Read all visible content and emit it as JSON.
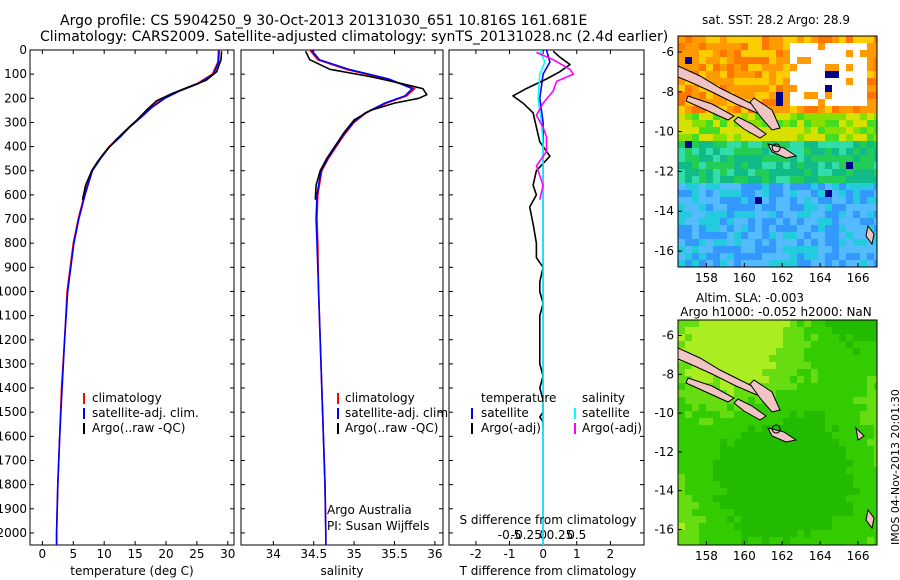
{
  "header": {
    "title_line1": "Argo profile: CS 5904250_9 30-Oct-2013 20131030_651 10.816S 161.681E",
    "title_line2": "Climatology: CARS2009. Satellite-adjusted climatology: synTS_20131028.nc (2.4d earlier)"
  },
  "footer": {
    "stamp": "IMOS 04-Nov-2013 20:01:30"
  },
  "colors": {
    "climatology": "#ff0000",
    "satellite": "#0000ff",
    "argo": "#000000",
    "s_satellite": "#00ffff",
    "s_argo": "#ff00ff"
  },
  "chart_data": [
    {
      "id": "temperature",
      "type": "line",
      "xlabel": "temperature (deg C)",
      "ylabel": "",
      "xlim": [
        -2,
        31
      ],
      "ylim": [
        2050,
        0
      ],
      "xticks": [
        0,
        5,
        10,
        15,
        20,
        25,
        30
      ],
      "yticks": [
        0,
        100,
        200,
        300,
        400,
        500,
        600,
        700,
        800,
        900,
        1000,
        1100,
        1200,
        1300,
        1400,
        1500,
        1600,
        1700,
        1800,
        1900,
        2000
      ],
      "legend": [
        "climatology",
        "satellite-adj. clim.",
        "Argo(..raw -QC)"
      ],
      "series": [
        {
          "name": "climatology",
          "color": "#ff0000",
          "points": [
            [
              28.5,
              0
            ],
            [
              28.4,
              50
            ],
            [
              27.5,
              100
            ],
            [
              25,
              140
            ],
            [
              22,
              170
            ],
            [
              19.5,
              200
            ],
            [
              17.5,
              240
            ],
            [
              15.8,
              280
            ],
            [
              14,
              320
            ],
            [
              12.5,
              360
            ],
            [
              10.8,
              400
            ],
            [
              9.3,
              450
            ],
            [
              8,
              500
            ],
            [
              6.8,
              600
            ],
            [
              5.8,
              700
            ],
            [
              5,
              800
            ],
            [
              4.5,
              900
            ],
            [
              4,
              1000
            ],
            [
              3.6,
              1200
            ],
            [
              3.1,
              1400
            ],
            [
              2.8,
              1600
            ],
            [
              2.5,
              1800
            ],
            [
              2.3,
              2000
            ],
            [
              2.3,
              2050
            ]
          ]
        },
        {
          "name": "satellite-adj. clim.",
          "color": "#0000ff",
          "points": [
            [
              28.6,
              0
            ],
            [
              28.5,
              50
            ],
            [
              27.7,
              100
            ],
            [
              25.2,
              140
            ],
            [
              22.2,
              170
            ],
            [
              19.8,
              200
            ],
            [
              17.6,
              240
            ],
            [
              15.9,
              280
            ],
            [
              14.1,
              320
            ],
            [
              12.6,
              360
            ],
            [
              10.9,
              400
            ],
            [
              9.4,
              450
            ],
            [
              8.1,
              500
            ],
            [
              6.9,
              600
            ],
            [
              5.9,
              700
            ],
            [
              5.1,
              800
            ],
            [
              4.6,
              900
            ],
            [
              4.1,
              1000
            ],
            [
              3.6,
              1200
            ],
            [
              3.2,
              1400
            ],
            [
              2.8,
              1600
            ],
            [
              2.5,
              1800
            ],
            [
              2.3,
              2000
            ],
            [
              2.3,
              2050
            ]
          ]
        },
        {
          "name": "Argo(..raw -QC)",
          "color": "#000000",
          "points": [
            [
              29,
              5
            ],
            [
              28.9,
              40
            ],
            [
              28.2,
              90
            ],
            [
              26.5,
              125
            ],
            [
              24,
              150
            ],
            [
              21,
              180
            ],
            [
              18.5,
              210
            ],
            [
              16.8,
              250
            ],
            [
              15.3,
              290
            ],
            [
              13.6,
              330
            ],
            [
              12,
              370
            ],
            [
              10.2,
              420
            ],
            [
              9,
              460
            ],
            [
              8,
              500
            ],
            [
              7,
              560
            ],
            [
              6.5,
              620
            ]
          ]
        }
      ]
    },
    {
      "id": "salinity",
      "type": "line",
      "xlabel": "salinity",
      "ylabel": "",
      "xlim": [
        33.6,
        36.1
      ],
      "ylim": [
        2050,
        0
      ],
      "xticks": [
        34,
        34.5,
        35,
        35.5,
        36
      ],
      "xtick_labels": [
        "34",
        "34.5",
        "35",
        "35.5",
        "36"
      ],
      "legend": [
        "climatology",
        "satellite-adj. clim.",
        "Argo(..raw -QC)"
      ],
      "annotation": [
        "Argo Australia",
        "PI: Susan Wijffels"
      ],
      "series": [
        {
          "name": "climatology",
          "color": "#ff0000",
          "points": [
            [
              34.45,
              0
            ],
            [
              34.55,
              40
            ],
            [
              34.9,
              80
            ],
            [
              35.4,
              120
            ],
            [
              35.75,
              160
            ],
            [
              35.65,
              190
            ],
            [
              35.4,
              220
            ],
            [
              35.15,
              260
            ],
            [
              35,
              300
            ],
            [
              34.88,
              350
            ],
            [
              34.78,
              400
            ],
            [
              34.68,
              450
            ],
            [
              34.6,
              500
            ],
            [
              34.55,
              600
            ],
            [
              34.54,
              700
            ],
            [
              34.55,
              800
            ],
            [
              34.56,
              1000
            ],
            [
              34.58,
              1200
            ],
            [
              34.6,
              1400
            ],
            [
              34.62,
              1600
            ],
            [
              34.64,
              1800
            ],
            [
              34.65,
              2000
            ],
            [
              34.65,
              2050
            ]
          ]
        },
        {
          "name": "satellite-adj. clim.",
          "color": "#0000ff",
          "points": [
            [
              34.47,
              0
            ],
            [
              34.57,
              40
            ],
            [
              34.93,
              80
            ],
            [
              35.43,
              120
            ],
            [
              35.72,
              160
            ],
            [
              35.63,
              190
            ],
            [
              35.38,
              220
            ],
            [
              35.14,
              260
            ],
            [
              34.99,
              300
            ],
            [
              34.87,
              350
            ],
            [
              34.77,
              400
            ],
            [
              34.67,
              450
            ],
            [
              34.59,
              500
            ],
            [
              34.54,
              600
            ],
            [
              34.53,
              700
            ],
            [
              34.54,
              800
            ],
            [
              34.56,
              1000
            ],
            [
              34.58,
              1200
            ],
            [
              34.6,
              1400
            ],
            [
              34.62,
              1600
            ],
            [
              34.64,
              1800
            ],
            [
              34.65,
              2000
            ],
            [
              34.65,
              2050
            ]
          ]
        },
        {
          "name": "Argo(..raw -QC)",
          "color": "#000000",
          "points": [
            [
              34.4,
              5
            ],
            [
              34.45,
              40
            ],
            [
              34.7,
              80
            ],
            [
              35.2,
              110
            ],
            [
              35.6,
              140
            ],
            [
              35.85,
              160
            ],
            [
              35.9,
              185
            ],
            [
              35.8,
              200
            ],
            [
              35.5,
              220
            ],
            [
              35.2,
              250
            ],
            [
              35,
              290
            ],
            [
              34.88,
              340
            ],
            [
              34.76,
              400
            ],
            [
              34.66,
              450
            ],
            [
              34.58,
              500
            ],
            [
              34.53,
              560
            ],
            [
              34.52,
              620
            ]
          ]
        }
      ]
    },
    {
      "id": "difference",
      "type": "line",
      "xlabel": "T difference from climatology",
      "xlabel_top": "S difference from climatology",
      "xlim": [
        -2.8,
        3
      ],
      "ylim": [
        2050,
        0
      ],
      "xticks": [
        -2,
        -1,
        0,
        1,
        2
      ],
      "top_ticks": [
        -0.5,
        -0.25,
        0,
        0.25,
        0.5
      ],
      "top_tick_labels": [
        "-0.5",
        "-0.25",
        "0",
        "0.25",
        "0.5"
      ],
      "legend_left": [
        "temperature",
        "satellite",
        "Argo(-adj)"
      ],
      "legend_right": [
        "salinity",
        "satellite",
        "Argo(-adj)"
      ],
      "series": [
        {
          "name": "T satellite",
          "color": "#0000ff",
          "points": [
            [
              0.1,
              0
            ],
            [
              0.2,
              50
            ],
            [
              0,
              100
            ],
            [
              -0.1,
              200
            ],
            [
              0,
              300
            ],
            [
              0,
              400
            ],
            [
              0,
              500
            ],
            [
              0,
              700
            ],
            [
              0,
              900
            ],
            [
              0,
              1200
            ],
            [
              0,
              1500
            ],
            [
              0,
              1800
            ],
            [
              0,
              2050
            ]
          ]
        },
        {
          "name": "T Argo(-adj)",
          "color": "#000000",
          "points": [
            [
              0.3,
              5
            ],
            [
              0.5,
              30
            ],
            [
              0.8,
              60
            ],
            [
              0.5,
              90
            ],
            [
              0.1,
              120
            ],
            [
              -0.5,
              160
            ],
            [
              -0.9,
              190
            ],
            [
              -0.6,
              220
            ],
            [
              -0.3,
              260
            ],
            [
              -0.2,
              320
            ],
            [
              -0.1,
              380
            ],
            [
              0.2,
              440
            ],
            [
              -0.2,
              500
            ],
            [
              -0.3,
              560
            ],
            [
              -0.2,
              600
            ],
            [
              -0.4,
              650
            ],
            [
              -0.3,
              720
            ],
            [
              -0.2,
              800
            ],
            [
              -0.2,
              860
            ],
            [
              0,
              900
            ],
            [
              -0.1,
              960
            ],
            [
              -0.1,
              1000
            ],
            [
              0,
              1050
            ],
            [
              -0.1,
              1100
            ],
            [
              -0.1,
              1200
            ],
            [
              -0.1,
              1300
            ],
            [
              0,
              1350
            ],
            [
              -0.1,
              1400
            ],
            [
              0,
              1450
            ],
            [
              0,
              1500
            ],
            [
              -0.1,
              1520
            ],
            [
              0,
              1540
            ],
            [
              0,
              1560
            ]
          ]
        },
        {
          "name": "S satellite",
          "color": "#00ffff",
          "points": [
            [
              -0.1,
              0
            ],
            [
              0.05,
              50
            ],
            [
              -0.1,
              100
            ],
            [
              -0.15,
              200
            ],
            [
              -0.05,
              300
            ],
            [
              0,
              400
            ],
            [
              0,
              600
            ],
            [
              0,
              900
            ],
            [
              0,
              1200
            ],
            [
              0,
              1500
            ],
            [
              0,
              1800
            ],
            [
              0,
              2050
            ]
          ]
        },
        {
          "name": "S Argo(-adj)",
          "color": "#ff00ff",
          "points": [
            [
              -0.2,
              10
            ],
            [
              0.3,
              40
            ],
            [
              0.8,
              80
            ],
            [
              0.9,
              100
            ],
            [
              0.4,
              130
            ],
            [
              0.3,
              170
            ],
            [
              0,
              220
            ],
            [
              -0.2,
              270
            ],
            [
              0,
              320
            ],
            [
              0.1,
              360
            ],
            [
              0.1,
              420
            ],
            [
              -0.1,
              460
            ],
            [
              -0.2,
              480
            ],
            [
              -0.1,
              520
            ],
            [
              0,
              560
            ],
            [
              -0.1,
              620
            ]
          ]
        }
      ]
    }
  ],
  "maps": {
    "sst": {
      "title": "sat. SST: 28.2 Argo: 28.9",
      "xticks": [
        "158",
        "160",
        "162",
        "164",
        "166"
      ],
      "yticks": [
        "-6",
        "-8",
        "-10",
        "-12",
        "-14",
        "-16"
      ],
      "lon_range": [
        156.5,
        167
      ],
      "lat_range": [
        -16.8,
        -5.2
      ],
      "argo_position": [
        161.68,
        -10.82
      ]
    },
    "sla": {
      "title_line1": "Altim. SLA: -0.003",
      "title_line2": "Argo h1000: -0.052 h2000: NaN",
      "xticks": [
        "158",
        "160",
        "162",
        "164",
        "166"
      ],
      "yticks": [
        "-6",
        "-8",
        "-10",
        "-12",
        "-14",
        "-16"
      ],
      "lon_range": [
        156.5,
        167
      ],
      "lat_range": [
        -16.8,
        -5.2
      ],
      "argo_position": [
        161.68,
        -10.82
      ]
    }
  }
}
